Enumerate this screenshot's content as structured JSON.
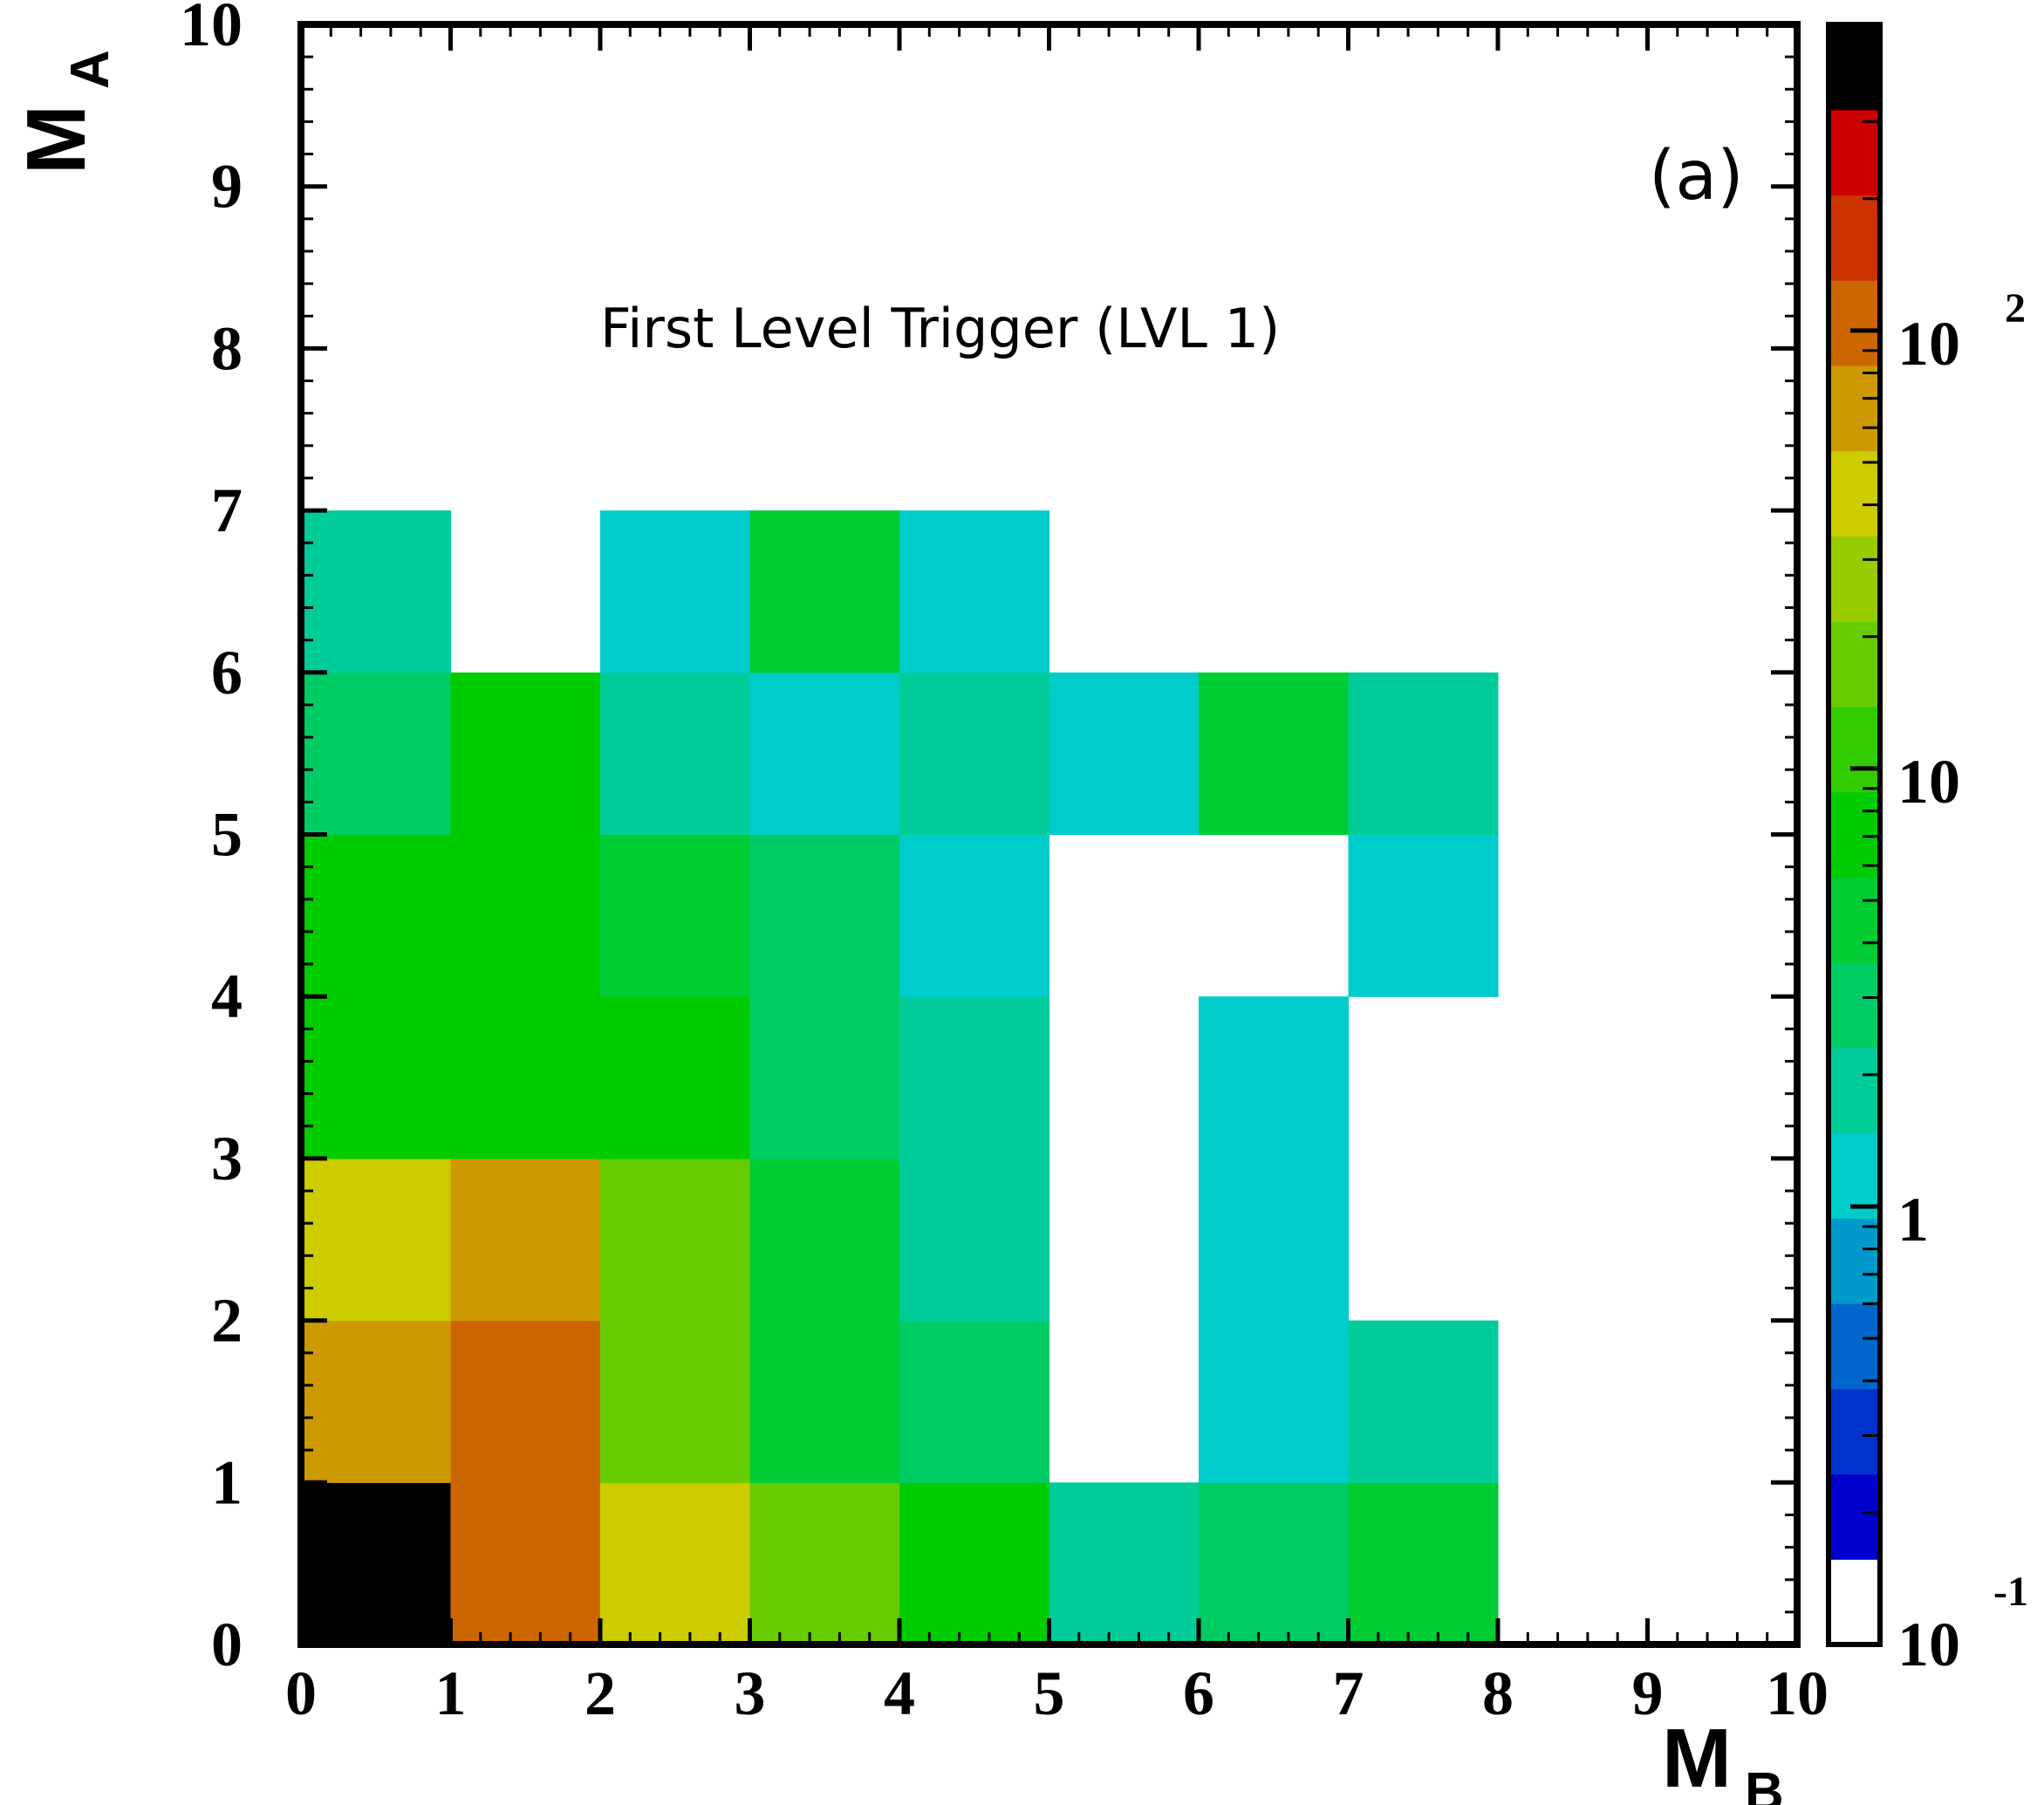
{
  "chart_data": {
    "type": "heatmap",
    "title": "",
    "annotations": {
      "panel_label": "(a)",
      "text": "First Level Trigger (LVL 1)"
    },
    "xlabel": {
      "main": "M",
      "sub": "B"
    },
    "ylabel": {
      "main": "M",
      "sub": "A"
    },
    "xlim": [
      0,
      10
    ],
    "ylim": [
      0,
      10
    ],
    "x_ticks": [
      "0",
      "1",
      "2",
      "3",
      "4",
      "5",
      "6",
      "7",
      "8",
      "9",
      "10"
    ],
    "y_ticks": [
      "0",
      "1",
      "2",
      "3",
      "4",
      "5",
      "6",
      "7",
      "8",
      "9",
      "10"
    ],
    "colorbar": {
      "scale": "log",
      "range": [
        0.1,
        500
      ],
      "labels": [
        {
          "value": 0.1,
          "base": "10",
          "exp": "-1"
        },
        {
          "value": 1,
          "base": "1",
          "exp": ""
        },
        {
          "value": 10,
          "base": "10",
          "exp": ""
        },
        {
          "value": 100,
          "base": "10",
          "exp": "2"
        }
      ],
      "colors": [
        "#ffffff",
        "#0000cc",
        "#0033cc",
        "#0066cc",
        "#0099cc",
        "#00cccc",
        "#00cc99",
        "#00cc66",
        "#00cc33",
        "#00cc00",
        "#33cc00",
        "#66cc00",
        "#99cc00",
        "#cccc00",
        "#cc9900",
        "#cc6600",
        "#cc3300",
        "#cc0000",
        "#000000"
      ]
    },
    "cells": [
      {
        "x": 0,
        "y": 0,
        "value": 500
      },
      {
        "x": 1,
        "y": 0,
        "value": 130
      },
      {
        "x": 2,
        "y": 0,
        "value": 40
      },
      {
        "x": 3,
        "y": 0,
        "value": 15
      },
      {
        "x": 4,
        "y": 0,
        "value": 8
      },
      {
        "x": 5,
        "y": 0,
        "value": 1.5
      },
      {
        "x": 6,
        "y": 0,
        "value": 2.5
      },
      {
        "x": 7,
        "y": 0,
        "value": 4
      },
      {
        "x": 0,
        "y": 1,
        "value": 70
      },
      {
        "x": 1,
        "y": 1,
        "value": 130
      },
      {
        "x": 2,
        "y": 1,
        "value": 15
      },
      {
        "x": 3,
        "y": 1,
        "value": 4
      },
      {
        "x": 4,
        "y": 1,
        "value": 2.5
      },
      {
        "x": 6,
        "y": 1,
        "value": 1
      },
      {
        "x": 7,
        "y": 1,
        "value": 1.5
      },
      {
        "x": 0,
        "y": 2,
        "value": 40
      },
      {
        "x": 1,
        "y": 2,
        "value": 70
      },
      {
        "x": 2,
        "y": 2,
        "value": 15
      },
      {
        "x": 3,
        "y": 2,
        "value": 4
      },
      {
        "x": 4,
        "y": 2,
        "value": 1.5
      },
      {
        "x": 6,
        "y": 2,
        "value": 1
      },
      {
        "x": 0,
        "y": 3,
        "value": 8
      },
      {
        "x": 1,
        "y": 3,
        "value": 8
      },
      {
        "x": 2,
        "y": 3,
        "value": 8
      },
      {
        "x": 3,
        "y": 3,
        "value": 2.5
      },
      {
        "x": 4,
        "y": 3,
        "value": 1.5
      },
      {
        "x": 6,
        "y": 3,
        "value": 1
      },
      {
        "x": 0,
        "y": 4,
        "value": 8
      },
      {
        "x": 1,
        "y": 4,
        "value": 8
      },
      {
        "x": 2,
        "y": 4,
        "value": 4
      },
      {
        "x": 3,
        "y": 4,
        "value": 2.5
      },
      {
        "x": 4,
        "y": 4,
        "value": 1
      },
      {
        "x": 7,
        "y": 4,
        "value": 1
      },
      {
        "x": 0,
        "y": 5,
        "value": 2.5
      },
      {
        "x": 1,
        "y": 5,
        "value": 8
      },
      {
        "x": 2,
        "y": 5,
        "value": 1.5
      },
      {
        "x": 3,
        "y": 5,
        "value": 1
      },
      {
        "x": 4,
        "y": 5,
        "value": 1.5
      },
      {
        "x": 5,
        "y": 5,
        "value": 1
      },
      {
        "x": 6,
        "y": 5,
        "value": 4
      },
      {
        "x": 7,
        "y": 5,
        "value": 1.5
      },
      {
        "x": 0,
        "y": 6,
        "value": 1.5
      },
      {
        "x": 2,
        "y": 6,
        "value": 1
      },
      {
        "x": 3,
        "y": 6,
        "value": 4
      },
      {
        "x": 4,
        "y": 6,
        "value": 1
      }
    ]
  }
}
